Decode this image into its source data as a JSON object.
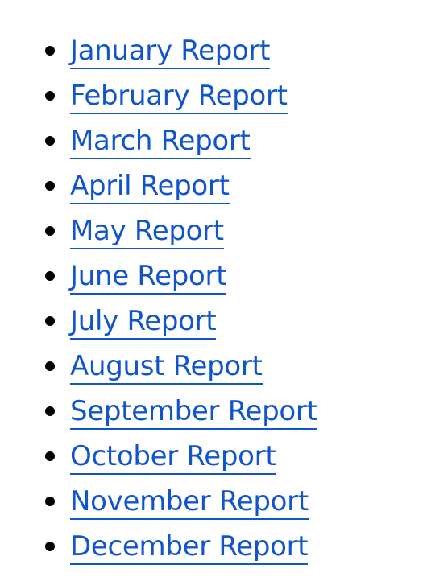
{
  "colors": {
    "link": "#1155cc",
    "bullet": "#000000",
    "background": "#ffffff"
  },
  "reports": [
    {
      "label": "January Report"
    },
    {
      "label": "February Report"
    },
    {
      "label": "March Report"
    },
    {
      "label": "April Report"
    },
    {
      "label": "May Report"
    },
    {
      "label": "June Report"
    },
    {
      "label": "July Report"
    },
    {
      "label": "August Report"
    },
    {
      "label": "September Report"
    },
    {
      "label": "October Report"
    },
    {
      "label": "November Report"
    },
    {
      "label": "December Report"
    }
  ]
}
